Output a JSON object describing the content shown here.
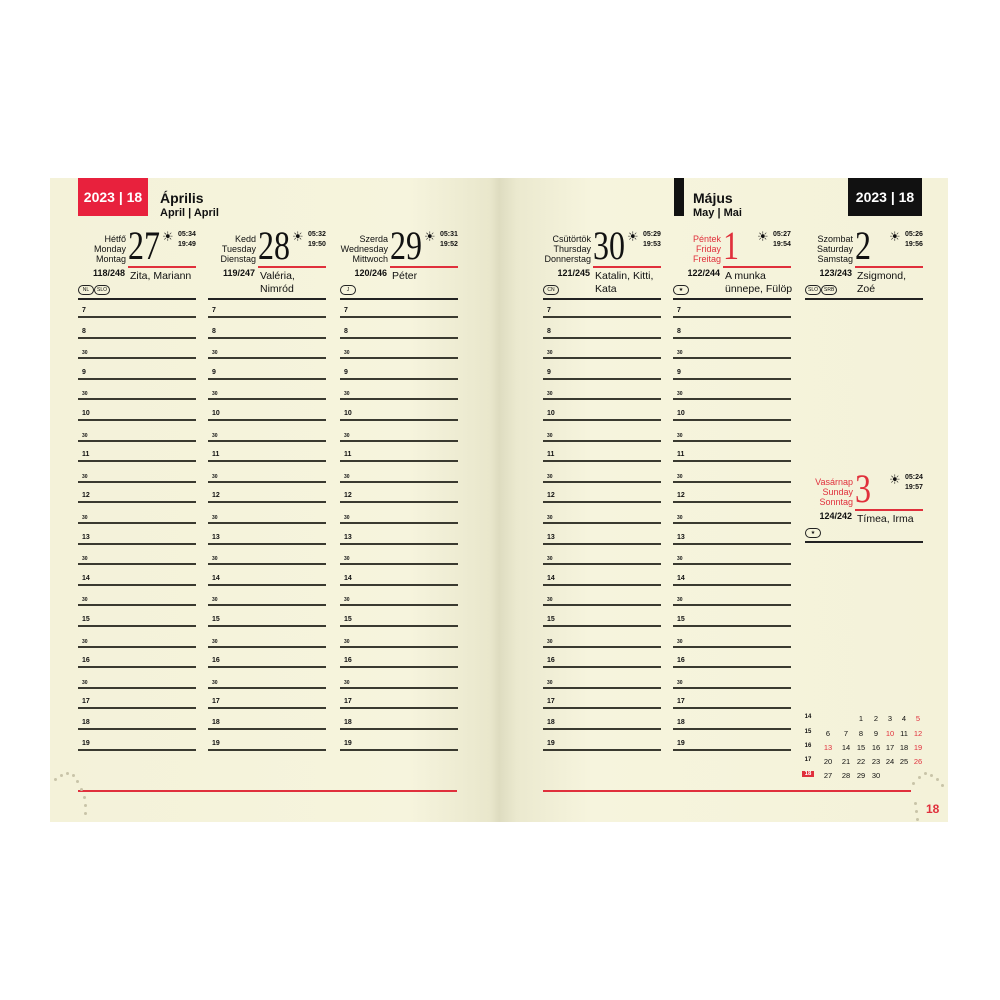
{
  "left_page": {
    "year_week": "2023 | 18",
    "month": "Április",
    "month_sub": "April | April",
    "year_color": "#e8213d"
  },
  "right_page": {
    "year_week": "2023 | 18",
    "month": "Május",
    "month_sub": "May | Mai",
    "year_color": "#111111",
    "page_number": "18"
  },
  "hours": [
    "7",
    "8",
    "30",
    "9",
    "30",
    "10",
    "30",
    "11",
    "30",
    "12",
    "30",
    "13",
    "30",
    "14",
    "30",
    "15",
    "30",
    "16",
    "30",
    "17",
    "18",
    "19"
  ],
  "days": [
    {
      "names": [
        "Hétfő",
        "Monday",
        "Montag"
      ],
      "num": "27",
      "sunrise": "05:34",
      "sunset": "19:49",
      "doy": "118/248",
      "nameday": "Zita, Mariann",
      "badges": [
        "NL",
        "SLO"
      ],
      "red": false,
      "lines": true
    },
    {
      "names": [
        "Kedd",
        "Tuesday",
        "Dienstag"
      ],
      "num": "28",
      "sunrise": "05:32",
      "sunset": "19:50",
      "doy": "119/247",
      "nameday": "Valéria, Nimród",
      "badges": [],
      "red": false,
      "lines": true
    },
    {
      "names": [
        "Szerda",
        "Wednesday",
        "Mittwoch"
      ],
      "num": "29",
      "sunrise": "05:31",
      "sunset": "19:52",
      "doy": "120/246",
      "nameday": "Péter",
      "badges": [
        "J"
      ],
      "red": false,
      "lines": true
    },
    {
      "names": [
        "Csütörtök",
        "Thursday",
        "Donnerstag"
      ],
      "num": "30",
      "sunrise": "05:29",
      "sunset": "19:53",
      "doy": "121/245",
      "nameday": "Katalin, Kitti, Kata",
      "badges": [
        "CN"
      ],
      "red": false,
      "lines": true
    },
    {
      "names": [
        "Péntek",
        "Friday",
        "Freitag"
      ],
      "num": "1",
      "sunrise": "05:27",
      "sunset": "19:54",
      "doy": "122/244",
      "nameday": "A munka ünnepe, Fülöp",
      "badges": [
        "★"
      ],
      "red": true,
      "lines": true
    },
    {
      "names": [
        "Szombat",
        "Saturday",
        "Samstag"
      ],
      "num": "2",
      "sunrise": "05:26",
      "sunset": "19:56",
      "doy": "123/243",
      "nameday": "Zsigmond, Zoé",
      "badges": [
        "SLO",
        "SRB"
      ],
      "red": false,
      "lines": false
    },
    {
      "names": [
        "Vasárnap",
        "Sunday",
        "Sonntag"
      ],
      "num": "3",
      "sunrise": "05:24",
      "sunset": "19:57",
      "doy": "124/242",
      "nameday": "Tímea, Irma",
      "badges": [
        "★"
      ],
      "red": true,
      "lines": false
    }
  ],
  "mini_calendar": {
    "weeks": [
      {
        "wk": "14",
        "days": [
          "",
          "",
          "1",
          "2",
          "3",
          "4",
          "5"
        ],
        "red": [
          6
        ]
      },
      {
        "wk": "15",
        "days": [
          "6",
          "7",
          "8",
          "9",
          "10",
          "11",
          "12"
        ],
        "red": [
          4,
          6
        ]
      },
      {
        "wk": "16",
        "days": [
          "13",
          "14",
          "15",
          "16",
          "17",
          "18",
          "19"
        ],
        "red": [
          0,
          6
        ]
      },
      {
        "wk": "17",
        "days": [
          "20",
          "21",
          "22",
          "23",
          "24",
          "25",
          "26"
        ],
        "red": [
          6
        ]
      },
      {
        "wk": "18",
        "days": [
          "27",
          "28",
          "29",
          "30",
          "",
          "",
          ""
        ],
        "red": [],
        "current": true
      }
    ]
  },
  "colors": {
    "accent": "#e0303c",
    "paper": "#f5f3db"
  }
}
